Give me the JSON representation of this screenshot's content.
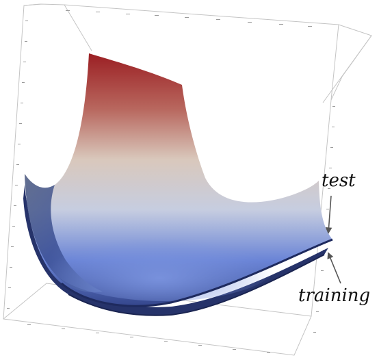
{
  "labels": {
    "test": "test",
    "training": "training"
  },
  "colors": {
    "surface_high": "#9b1f23",
    "surface_mid": "#dcd6d0",
    "surface_low": "#6a84d6",
    "surface_dark": "#23326a",
    "box_line": "#c4c4c4",
    "arrow": "#555555"
  }
}
